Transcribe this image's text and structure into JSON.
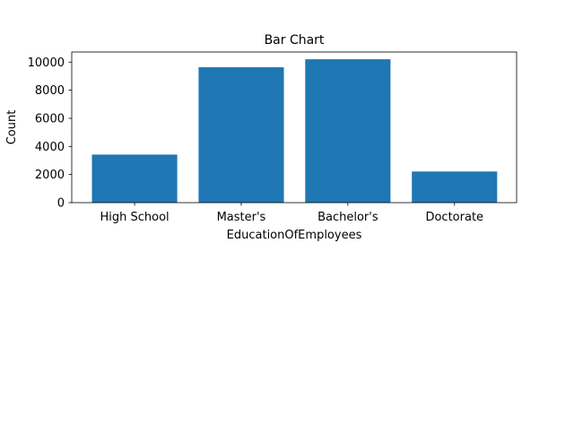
{
  "chart_data": {
    "type": "bar",
    "title": "Bar Chart",
    "xlabel": "EducationOfEmployees",
    "ylabel": "Count",
    "categories": [
      "High School",
      "Master's",
      "Bachelor's",
      "Doctorate"
    ],
    "values": [
      3420,
      9634,
      10204,
      2216
    ],
    "ylim": [
      0,
      10720
    ],
    "yticks": [
      0,
      2000,
      4000,
      6000,
      8000,
      10000
    ],
    "ytick_labels": [
      "0",
      "2000",
      "4000",
      "6000",
      "8000",
      "10000"
    ],
    "grid": false,
    "legend": "none",
    "bar_color": "#1f77b4"
  }
}
